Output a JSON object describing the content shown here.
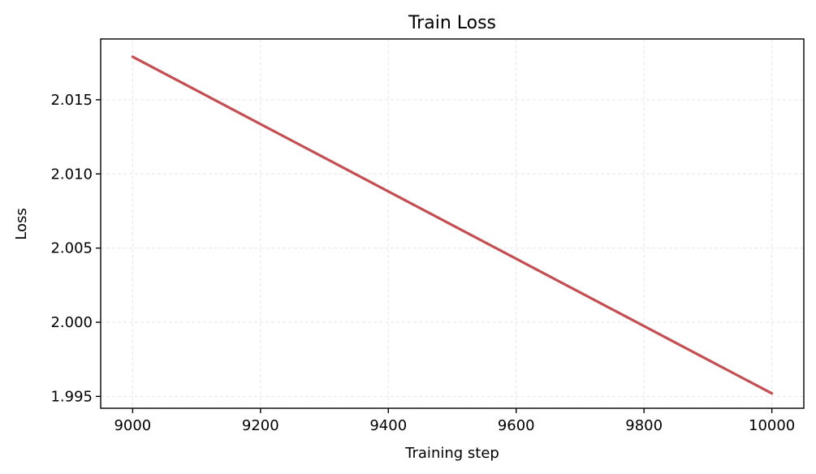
{
  "chart_data": {
    "type": "line",
    "title": "Train Loss",
    "xlabel": "Training step",
    "ylabel": "Loss",
    "xlim": [
      8950,
      10050
    ],
    "ylim": [
      1.9942,
      2.0191
    ],
    "xticks": [
      9000,
      9200,
      9400,
      9600,
      9800,
      10000
    ],
    "xtick_labels": [
      "9000",
      "9200",
      "9400",
      "9600",
      "9800",
      "10000"
    ],
    "yticks": [
      1.995,
      2.0,
      2.005,
      2.01,
      2.015
    ],
    "ytick_labels": [
      "1.995",
      "2.000",
      "2.005",
      "2.010",
      "2.015"
    ],
    "grid": true,
    "series": [
      {
        "color": "#c44e52",
        "x": [
          9000,
          10000
        ],
        "y": [
          2.0179,
          1.9952
        ]
      }
    ]
  }
}
